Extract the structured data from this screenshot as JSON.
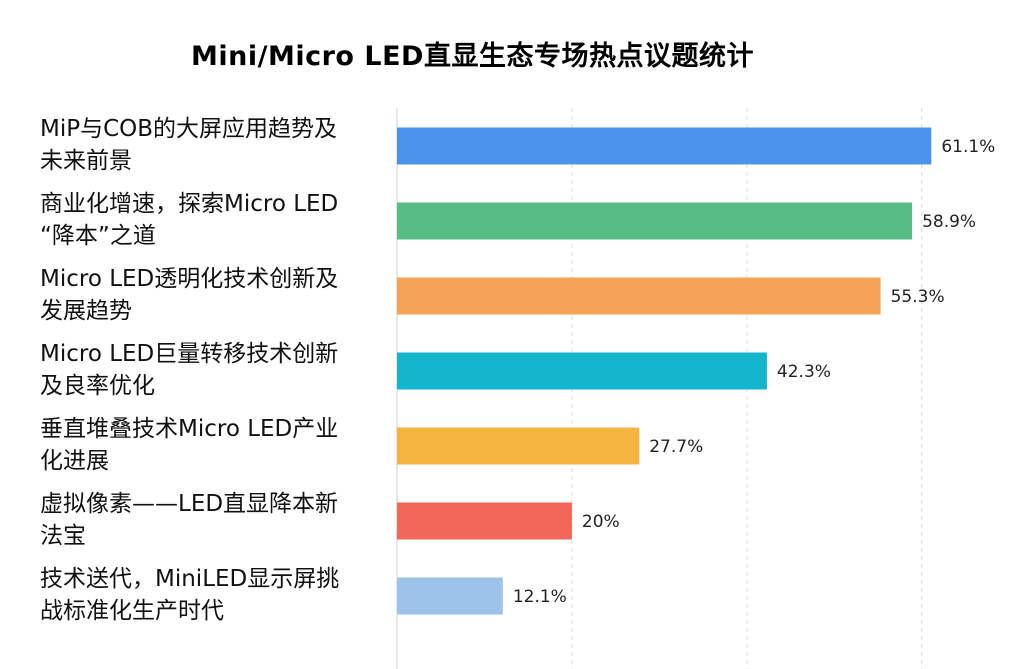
{
  "chart_data": {
    "type": "bar",
    "orientation": "horizontal",
    "title": "Mini/Micro LED直显生态专场热点议题统计",
    "xlabel": "",
    "ylabel": "",
    "xlim": [
      0,
      70
    ],
    "grid": true,
    "categories": [
      "MiP与COB的大屏应用趋势及\n未来前景",
      "商业化增速，探索Micro LED\n“降本”之道",
      "Micro LED透明化技术创新及\n发展趋势",
      "Micro LED巨量转移技术创新\n及良率优化",
      "垂直堆叠技术Micro LED产业\n化进展",
      " 虚拟像素——LED直显降本新\n 法宝",
      "技术送代，MiniLED显示屏挑\n战标准化生产时代"
    ],
    "values": [
      61.1,
      58.9,
      55.3,
      42.3,
      27.7,
      20,
      12.1
    ],
    "value_labels": [
      "61.1%",
      "58.9%",
      "55.3%",
      "42.3%",
      "27.7%",
      "20%",
      "12.1%"
    ],
    "colors": [
      "#4C93EE",
      "#58BD85",
      "#F6A259",
      "#13B6CD",
      "#F5B43F",
      "#F1675A",
      "#9DC3EA"
    ]
  }
}
